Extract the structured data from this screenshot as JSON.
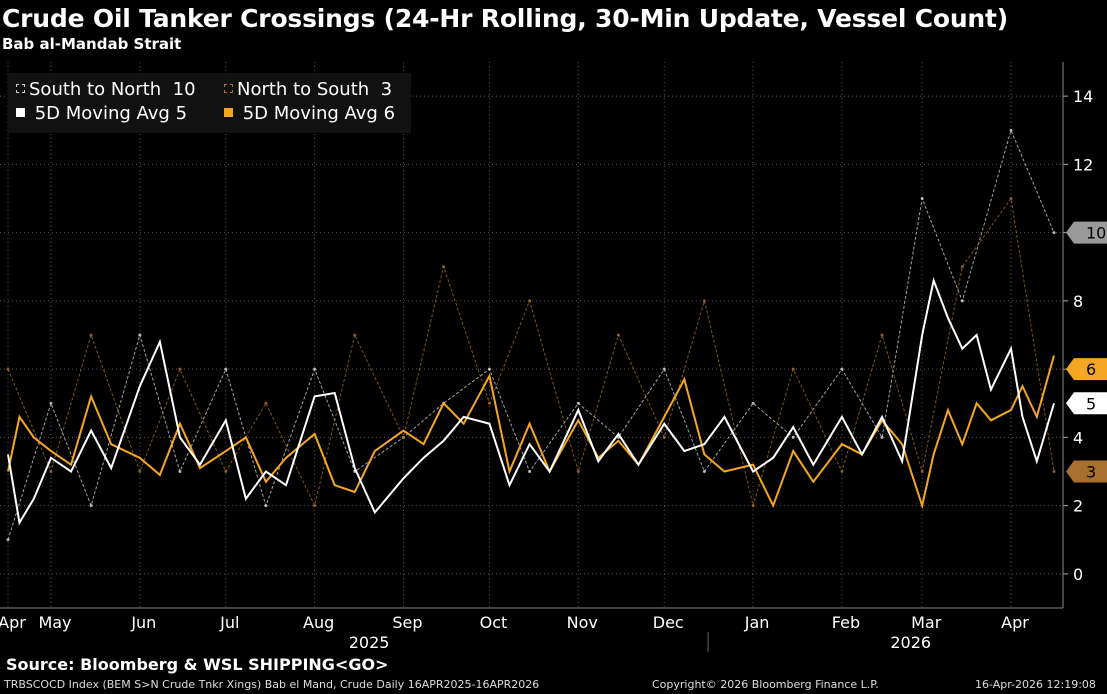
{
  "title": "Crude Oil Tanker Crossings (24-Hr Rolling, 30-Min Update, Vessel Count)",
  "subtitle": "Bab al-Mandab Strait",
  "source": "Source: Bloomberg & WSL SHIPPING<GO>",
  "footer": {
    "index": "TRBSCOCD Index (BEM S>N Crude Tnkr Xings) Bab el Mand, Crude Daily 16APR2025-16APR2026",
    "copyright": "Copyright© 2026 Bloomberg Finance L.P.",
    "timestamp": "16-Apr-2026 12:19:08"
  },
  "legend": {
    "s2n_label": "South to North",
    "s2n_value": "10",
    "n2s_label": "North to South",
    "n2s_value": "3",
    "ma_s2n_label": "5D Moving Avg",
    "ma_s2n_value": "5",
    "ma_n2s_label": "5D Moving Avg",
    "ma_n2s_value": "6"
  },
  "colors": {
    "s2n": "#d9d9d9",
    "n2s": "#a8702e",
    "ma_s2n": "#ffffff",
    "ma_n2s": "#f5a623",
    "background": "#000000",
    "grid": "#555555"
  },
  "chart_data": {
    "type": "line",
    "x_range": [
      "2025-04-16",
      "2026-04-16"
    ],
    "ylim": [
      -1,
      15
    ],
    "yticks": [
      0,
      2,
      4,
      6,
      8,
      10,
      12,
      14
    ],
    "month_labels": [
      "Apr",
      "May",
      "Jun",
      "Jul",
      "Aug",
      "Sep",
      "Oct",
      "Nov",
      "Dec",
      "Jan",
      "Feb",
      "Mar",
      "Apr"
    ],
    "month_dates": [
      "2025-04-16",
      "2025-05-01",
      "2025-06-01",
      "2025-07-01",
      "2025-08-01",
      "2025-09-01",
      "2025-10-01",
      "2025-11-01",
      "2025-12-01",
      "2026-01-01",
      "2026-02-01",
      "2026-03-01",
      "2026-04-01"
    ],
    "year_labels": [
      "2025",
      "2026"
    ],
    "last_value_labels": [
      {
        "series": "South to North",
        "value": 10
      },
      {
        "series": "5D Moving Avg (North to South)",
        "value": 6
      },
      {
        "series": "5D Moving Avg (South to North)",
        "value": 5
      },
      {
        "series": "North to South",
        "value": 3
      }
    ],
    "series": [
      {
        "name": "South to North",
        "style": "dashed",
        "dates": [
          "2025-04-16",
          "2025-05-01",
          "2025-05-15",
          "2025-06-01",
          "2025-06-15",
          "2025-07-01",
          "2025-07-15",
          "2025-08-01",
          "2025-08-15",
          "2025-09-01",
          "2025-09-15",
          "2025-10-01",
          "2025-10-15",
          "2025-11-01",
          "2025-11-15",
          "2025-12-01",
          "2025-12-15",
          "2026-01-01",
          "2026-01-15",
          "2026-02-01",
          "2026-02-15",
          "2026-03-01",
          "2026-03-15",
          "2026-04-01",
          "2026-04-16"
        ],
        "values": [
          1,
          5,
          2,
          7,
          3,
          6,
          2,
          6,
          3,
          4,
          5,
          6,
          3,
          5,
          4,
          6,
          3,
          5,
          4,
          6,
          4,
          11,
          8,
          13,
          10
        ]
      },
      {
        "name": "North to South",
        "style": "dashed",
        "dates": [
          "2025-04-16",
          "2025-05-01",
          "2025-05-15",
          "2025-06-01",
          "2025-06-15",
          "2025-07-01",
          "2025-07-15",
          "2025-08-01",
          "2025-08-15",
          "2025-09-01",
          "2025-09-15",
          "2025-10-01",
          "2025-10-15",
          "2025-11-01",
          "2025-11-15",
          "2025-12-01",
          "2025-12-15",
          "2026-01-01",
          "2026-01-15",
          "2026-02-01",
          "2026-02-15",
          "2026-03-01",
          "2026-03-15",
          "2026-04-01",
          "2026-04-16"
        ],
        "values": [
          6,
          3,
          7,
          3,
          6,
          3,
          5,
          2,
          7,
          4,
          9,
          5,
          8,
          3,
          7,
          4,
          8,
          2,
          6,
          3,
          7,
          3,
          9,
          11,
          3
        ]
      },
      {
        "name": "5D Moving Avg",
        "color_key": "ma_s2n",
        "dates": [
          "2025-04-16",
          "2025-04-20",
          "2025-04-25",
          "2025-05-01",
          "2025-05-08",
          "2025-05-15",
          "2025-05-22",
          "2025-06-01",
          "2025-06-08",
          "2025-06-15",
          "2025-06-22",
          "2025-07-01",
          "2025-07-08",
          "2025-07-15",
          "2025-07-22",
          "2025-08-01",
          "2025-08-08",
          "2025-08-15",
          "2025-08-22",
          "2025-09-01",
          "2025-09-08",
          "2025-09-15",
          "2025-09-22",
          "2025-10-01",
          "2025-10-08",
          "2025-10-15",
          "2025-10-22",
          "2025-11-01",
          "2025-11-08",
          "2025-11-15",
          "2025-11-22",
          "2025-12-01",
          "2025-12-08",
          "2025-12-15",
          "2025-12-22",
          "2026-01-01",
          "2026-01-08",
          "2026-01-15",
          "2026-01-22",
          "2026-02-01",
          "2026-02-08",
          "2026-02-15",
          "2026-02-22",
          "2026-03-01",
          "2026-03-05",
          "2026-03-10",
          "2026-03-15",
          "2026-03-20",
          "2026-03-25",
          "2026-04-01",
          "2026-04-05",
          "2026-04-10",
          "2026-04-16"
        ],
        "values": [
          3.5,
          1.5,
          2.2,
          3.4,
          3.0,
          4.2,
          3.1,
          5.5,
          6.8,
          4.0,
          3.2,
          4.5,
          2.2,
          3.0,
          2.6,
          5.2,
          5.3,
          3.1,
          1.8,
          2.8,
          3.4,
          3.9,
          4.6,
          4.4,
          2.6,
          3.8,
          3.0,
          4.8,
          3.3,
          4.1,
          3.2,
          4.4,
          3.6,
          3.8,
          4.6,
          3.0,
          3.4,
          4.3,
          3.2,
          4.6,
          3.5,
          4.6,
          3.3,
          7.0,
          8.6,
          7.5,
          6.6,
          7.0,
          5.4,
          6.6,
          4.6,
          3.3,
          5.0
        ]
      },
      {
        "name": "5D Moving Avg",
        "color_key": "ma_n2s",
        "dates": [
          "2025-04-16",
          "2025-04-20",
          "2025-04-25",
          "2025-05-01",
          "2025-05-08",
          "2025-05-15",
          "2025-05-22",
          "2025-06-01",
          "2025-06-08",
          "2025-06-15",
          "2025-06-22",
          "2025-07-01",
          "2025-07-08",
          "2025-07-15",
          "2025-07-22",
          "2025-08-01",
          "2025-08-08",
          "2025-08-15",
          "2025-08-22",
          "2025-09-01",
          "2025-09-08",
          "2025-09-15",
          "2025-09-22",
          "2025-10-01",
          "2025-10-08",
          "2025-10-15",
          "2025-10-22",
          "2025-11-01",
          "2025-11-08",
          "2025-11-15",
          "2025-11-22",
          "2025-12-01",
          "2025-12-08",
          "2025-12-15",
          "2025-12-22",
          "2026-01-01",
          "2026-01-08",
          "2026-01-15",
          "2026-01-22",
          "2026-02-01",
          "2026-02-08",
          "2026-02-15",
          "2026-02-22",
          "2026-03-01",
          "2026-03-05",
          "2026-03-10",
          "2026-03-15",
          "2026-03-20",
          "2026-03-25",
          "2026-04-01",
          "2026-04-05",
          "2026-04-10",
          "2026-04-16"
        ],
        "values": [
          3.0,
          4.6,
          4.0,
          3.6,
          3.2,
          5.2,
          3.8,
          3.4,
          2.9,
          4.4,
          3.1,
          3.6,
          4.0,
          2.7,
          3.4,
          4.1,
          2.6,
          2.4,
          3.6,
          4.2,
          3.8,
          5.0,
          4.4,
          5.8,
          3.0,
          4.4,
          3.0,
          4.5,
          3.4,
          3.9,
          3.2,
          4.6,
          5.7,
          3.5,
          3.0,
          3.2,
          2.0,
          3.6,
          2.7,
          3.8,
          3.5,
          4.5,
          3.8,
          2.0,
          3.5,
          4.8,
          3.8,
          5.0,
          4.5,
          4.8,
          5.5,
          4.6,
          6.4
        ]
      }
    ]
  }
}
